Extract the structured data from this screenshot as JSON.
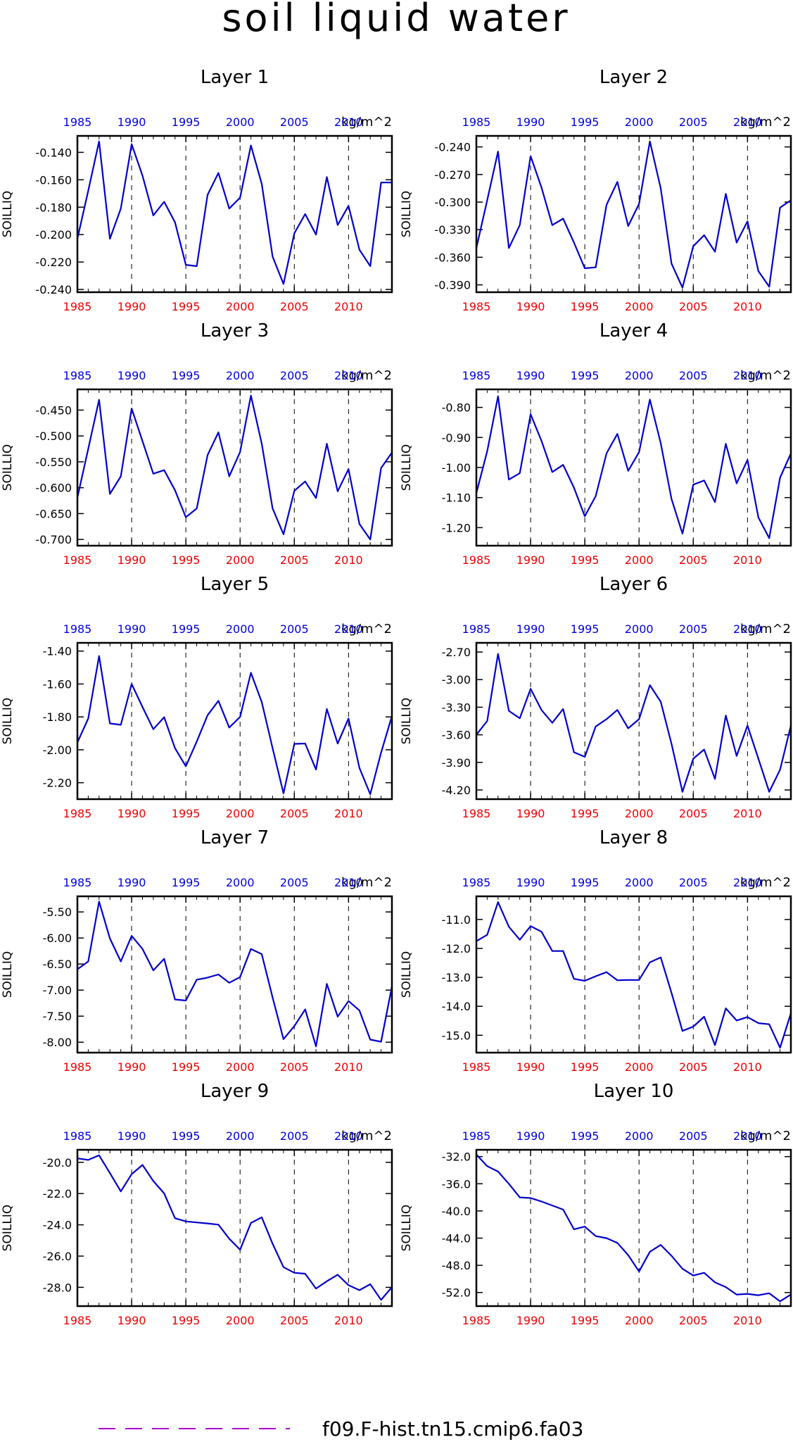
{
  "title": "soil liquid water",
  "legend": {
    "label": "f09.F-hist.tn15.cmip6.fa03",
    "color": "#aa00cc",
    "style": "dashed"
  },
  "chart_data": [
    {
      "type": "line",
      "title": "Layer 1",
      "ylabel": "SOILLIQ",
      "units": "kg/m^2",
      "xlim": [
        1985,
        2014
      ],
      "ylim": [
        -0.242,
        -0.128
      ],
      "yticks": [
        "-0.140",
        "-0.160",
        "-0.180",
        "-0.200",
        "-0.220",
        "-0.240"
      ],
      "x": [
        1985,
        1986,
        1987,
        1988,
        1989,
        1990,
        1991,
        1992,
        1993,
        1994,
        1995,
        1996,
        1997,
        1998,
        1999,
        2000,
        2001,
        2002,
        2003,
        2004,
        2005,
        2006,
        2007,
        2008,
        2009,
        2010,
        2011,
        2012,
        2013,
        2014
      ],
      "series": [
        {
          "values": [
            -0.203,
            -0.168,
            -0.132,
            -0.203,
            -0.181,
            -0.134,
            -0.157,
            -0.186,
            -0.176,
            -0.191,
            -0.222,
            -0.223,
            -0.171,
            -0.155,
            -0.181,
            -0.173,
            -0.135,
            -0.163,
            -0.216,
            -0.236,
            -0.199,
            -0.185,
            -0.2,
            -0.158,
            -0.193,
            -0.179,
            -0.211,
            -0.223,
            -0.162,
            -0.162
          ],
          "color": "#0000cc"
        }
      ]
    },
    {
      "type": "line",
      "title": "Layer 2",
      "ylabel": "SOILLIQ",
      "units": "kg/m^2",
      "xlim": [
        1985,
        2014
      ],
      "ylim": [
        -0.398,
        -0.228
      ],
      "yticks": [
        "-0.240",
        "-0.270",
        "-0.300",
        "-0.330",
        "-0.360",
        "-0.390"
      ],
      "x": [
        1985,
        1986,
        1987,
        1988,
        1989,
        1990,
        1991,
        1992,
        1993,
        1994,
        1995,
        1996,
        1997,
        1998,
        1999,
        2000,
        2001,
        2002,
        2003,
        2004,
        2005,
        2006,
        2007,
        2008,
        2009,
        2010,
        2011,
        2012,
        2013,
        2014
      ],
      "series": [
        {
          "values": [
            -0.35,
            -0.298,
            -0.245,
            -0.35,
            -0.325,
            -0.25,
            -0.284,
            -0.325,
            -0.318,
            -0.344,
            -0.372,
            -0.371,
            -0.303,
            -0.278,
            -0.326,
            -0.302,
            -0.234,
            -0.285,
            -0.367,
            -0.393,
            -0.348,
            -0.336,
            -0.354,
            -0.291,
            -0.344,
            -0.321,
            -0.375,
            -0.392,
            -0.306,
            -0.298
          ],
          "color": "#0000cc"
        }
      ]
    },
    {
      "type": "line",
      "title": "Layer 3",
      "ylabel": "SOILLIQ",
      "units": "kg/m^2",
      "xlim": [
        1985,
        2014
      ],
      "ylim": [
        -0.712,
        -0.41
      ],
      "yticks": [
        "-0.450",
        "-0.500",
        "-0.550",
        "-0.600",
        "-0.650",
        "-0.700"
      ],
      "x": [
        1985,
        1986,
        1987,
        1988,
        1989,
        1990,
        1991,
        1992,
        1993,
        1994,
        1995,
        1996,
        1997,
        1998,
        1999,
        2000,
        2001,
        2002,
        2003,
        2004,
        2005,
        2006,
        2007,
        2008,
        2009,
        2010,
        2011,
        2012,
        2013,
        2014
      ],
      "series": [
        {
          "values": [
            -0.619,
            -0.525,
            -0.43,
            -0.612,
            -0.578,
            -0.447,
            -0.51,
            -0.573,
            -0.566,
            -0.605,
            -0.657,
            -0.64,
            -0.537,
            -0.493,
            -0.578,
            -0.531,
            -0.422,
            -0.515,
            -0.64,
            -0.69,
            -0.606,
            -0.588,
            -0.62,
            -0.515,
            -0.607,
            -0.564,
            -0.67,
            -0.7,
            -0.562,
            -0.532
          ],
          "color": "#0000cc"
        }
      ]
    },
    {
      "type": "line",
      "title": "Layer 4",
      "ylabel": "SOILLIQ",
      "units": "kg/m^2",
      "xlim": [
        1985,
        2014
      ],
      "ylim": [
        -1.26,
        -0.74
      ],
      "yticks": [
        "-0.80",
        "-0.90",
        "-1.00",
        "-1.10",
        "-1.20"
      ],
      "x": [
        1985,
        1986,
        1987,
        1988,
        1989,
        1990,
        1991,
        1992,
        1993,
        1994,
        1995,
        1996,
        1997,
        1998,
        1999,
        2000,
        2001,
        2002,
        2003,
        2004,
        2005,
        2006,
        2007,
        2008,
        2009,
        2010,
        2011,
        2012,
        2013,
        2014
      ],
      "series": [
        {
          "values": [
            -1.085,
            -0.946,
            -0.763,
            -1.04,
            -1.019,
            -0.823,
            -0.911,
            -1.015,
            -0.991,
            -1.067,
            -1.162,
            -1.095,
            -0.953,
            -0.888,
            -1.011,
            -0.949,
            -0.774,
            -0.919,
            -1.105,
            -1.22,
            -1.057,
            -1.043,
            -1.115,
            -0.921,
            -1.053,
            -0.975,
            -1.166,
            -1.235,
            -1.034,
            -0.953
          ],
          "color": "#0000cc"
        }
      ]
    },
    {
      "type": "line",
      "title": "Layer 5",
      "ylabel": "SOILLIQ",
      "units": "kg/m^2",
      "xlim": [
        1985,
        2014
      ],
      "ylim": [
        -2.3,
        -1.35
      ],
      "yticks": [
        "-1.40",
        "-1.60",
        "-1.80",
        "-2.00",
        "-2.20"
      ],
      "x": [
        1985,
        1986,
        1987,
        1988,
        1989,
        1990,
        1991,
        1992,
        1993,
        1994,
        1995,
        1996,
        1997,
        1998,
        1999,
        2000,
        2001,
        2002,
        2003,
        2004,
        2005,
        2006,
        2007,
        2008,
        2009,
        2010,
        2011,
        2012,
        2013,
        2014
      ],
      "series": [
        {
          "values": [
            -1.955,
            -1.81,
            -1.43,
            -1.84,
            -1.848,
            -1.6,
            -1.74,
            -1.875,
            -1.802,
            -1.99,
            -2.1,
            -1.95,
            -1.79,
            -1.702,
            -1.865,
            -1.8,
            -1.532,
            -1.71,
            -1.99,
            -2.265,
            -1.964,
            -1.962,
            -2.12,
            -1.752,
            -1.962,
            -1.81,
            -2.11,
            -2.27,
            -2.017,
            -1.795
          ],
          "color": "#0000cc"
        }
      ]
    },
    {
      "type": "line",
      "title": "Layer 6",
      "ylabel": "SOILLIQ",
      "units": "kg/m^2",
      "xlim": [
        1985,
        2014
      ],
      "ylim": [
        -4.3,
        -2.6
      ],
      "yticks": [
        "-2.70",
        "-3.00",
        "-3.30",
        "-3.60",
        "-3.90",
        "-4.20"
      ],
      "x": [
        1985,
        1986,
        1987,
        1988,
        1989,
        1990,
        1991,
        1992,
        1993,
        1994,
        1995,
        1996,
        1997,
        1998,
        1999,
        2000,
        2001,
        2002,
        2003,
        2004,
        2005,
        2006,
        2007,
        2008,
        2009,
        2010,
        2011,
        2012,
        2013,
        2014
      ],
      "series": [
        {
          "values": [
            -3.6,
            -3.45,
            -2.72,
            -3.34,
            -3.42,
            -3.1,
            -3.33,
            -3.47,
            -3.32,
            -3.79,
            -3.84,
            -3.51,
            -3.43,
            -3.33,
            -3.53,
            -3.43,
            -3.06,
            -3.24,
            -3.7,
            -4.22,
            -3.86,
            -3.76,
            -4.08,
            -3.39,
            -3.83,
            -3.5,
            -3.86,
            -4.22,
            -3.98,
            -3.5
          ],
          "color": "#0000cc"
        }
      ]
    },
    {
      "type": "line",
      "title": "Layer 7",
      "ylabel": "SOILLIQ",
      "units": "kg/m^2",
      "xlim": [
        1985,
        2014
      ],
      "ylim": [
        -8.2,
        -5.2
      ],
      "yticks": [
        "-5.50",
        "-6.00",
        "-6.50",
        "-7.00",
        "-7.50",
        "-8.00"
      ],
      "x": [
        1985,
        1986,
        1987,
        1988,
        1989,
        1990,
        1991,
        1992,
        1993,
        1994,
        1995,
        1996,
        1997,
        1998,
        1999,
        2000,
        2001,
        2002,
        2003,
        2004,
        2005,
        2006,
        2007,
        2008,
        2009,
        2010,
        2011,
        2012,
        2013,
        2014
      ],
      "series": [
        {
          "values": [
            -6.6,
            -6.45,
            -5.3,
            -6.01,
            -6.45,
            -5.96,
            -6.21,
            -6.62,
            -6.4,
            -7.18,
            -7.2,
            -6.8,
            -6.76,
            -6.7,
            -6.86,
            -6.75,
            -6.21,
            -6.31,
            -7.14,
            -7.94,
            -7.69,
            -7.37,
            -8.08,
            -6.88,
            -7.51,
            -7.21,
            -7.39,
            -7.95,
            -7.99,
            -6.93
          ],
          "color": "#0000cc"
        }
      ]
    },
    {
      "type": "line",
      "title": "Layer 8",
      "ylabel": "SOILLIQ",
      "units": "kg/m^2",
      "xlim": [
        1985,
        2014
      ],
      "ylim": [
        -15.6,
        -10.2
      ],
      "yticks": [
        "-11.0",
        "-12.0",
        "-13.0",
        "-14.0",
        "-15.0"
      ],
      "x": [
        1985,
        1986,
        1987,
        1988,
        1989,
        1990,
        1991,
        1992,
        1993,
        1994,
        1995,
        1996,
        1997,
        1998,
        1999,
        2000,
        2001,
        2002,
        2003,
        2004,
        2005,
        2006,
        2007,
        2008,
        2009,
        2010,
        2011,
        2012,
        2013,
        2014
      ],
      "series": [
        {
          "values": [
            -11.75,
            -11.53,
            -10.4,
            -11.25,
            -11.7,
            -11.23,
            -11.42,
            -12.09,
            -12.09,
            -13.05,
            -13.12,
            -12.96,
            -12.82,
            -13.1,
            -13.09,
            -13.09,
            -12.48,
            -12.31,
            -13.54,
            -14.85,
            -14.7,
            -14.36,
            -15.34,
            -14.07,
            -14.49,
            -14.37,
            -14.58,
            -14.62,
            -15.43,
            -14.24
          ],
          "color": "#0000cc"
        }
      ]
    },
    {
      "type": "line",
      "title": "Layer 9",
      "ylabel": "SOILLIQ",
      "units": "kg/m^2",
      "xlim": [
        1985,
        2014
      ],
      "ylim": [
        -29.2,
        -19.2
      ],
      "yticks": [
        "-20.0",
        "-22.0",
        "-24.0",
        "-26.0",
        "-28.0"
      ],
      "x": [
        1985,
        1986,
        1987,
        1988,
        1989,
        1990,
        1991,
        1992,
        1993,
        1994,
        1995,
        1996,
        1997,
        1998,
        1999,
        2000,
        2001,
        2002,
        2003,
        2004,
        2005,
        2006,
        2007,
        2008,
        2009,
        2010,
        2011,
        2012,
        2013,
        2014
      ],
      "series": [
        {
          "values": [
            -19.75,
            -19.85,
            -19.55,
            -20.69,
            -21.86,
            -20.76,
            -20.17,
            -21.2,
            -21.99,
            -23.58,
            -23.78,
            -23.85,
            -23.91,
            -23.99,
            -24.89,
            -25.59,
            -23.88,
            -23.52,
            -25.21,
            -26.71,
            -27.07,
            -27.13,
            -28.08,
            -27.61,
            -27.19,
            -27.86,
            -28.18,
            -27.8,
            -28.8,
            -27.99
          ],
          "color": "#0000cc"
        }
      ]
    },
    {
      "type": "line",
      "title": "Layer 10",
      "ylabel": "SOILLIQ",
      "units": "kg/m^2",
      "xlim": [
        1985,
        2014
      ],
      "ylim": [
        -54.0,
        -31.0
      ],
      "yticks": [
        "-32.0",
        "-36.0",
        "-40.0",
        "-44.0",
        "-48.0",
        "-52.0"
      ],
      "x": [
        1985,
        1986,
        1987,
        1988,
        1989,
        1990,
        1991,
        1992,
        1993,
        1994,
        1995,
        1996,
        1997,
        1998,
        1999,
        2000,
        2001,
        2002,
        2003,
        2004,
        2005,
        2006,
        2007,
        2008,
        2009,
        2010,
        2011,
        2012,
        2013,
        2014
      ],
      "series": [
        {
          "values": [
            -31.7,
            -33.4,
            -34.2,
            -36.0,
            -38.0,
            -38.1,
            -38.6,
            -39.2,
            -39.8,
            -42.7,
            -42.3,
            -43.7,
            -44.0,
            -44.7,
            -46.5,
            -48.9,
            -46.0,
            -45.0,
            -46.6,
            -48.5,
            -49.5,
            -49.1,
            -50.5,
            -51.2,
            -52.3,
            -52.2,
            -52.4,
            -52.1,
            -53.3,
            -52.3
          ],
          "color": "#0000cc"
        }
      ]
    }
  ]
}
